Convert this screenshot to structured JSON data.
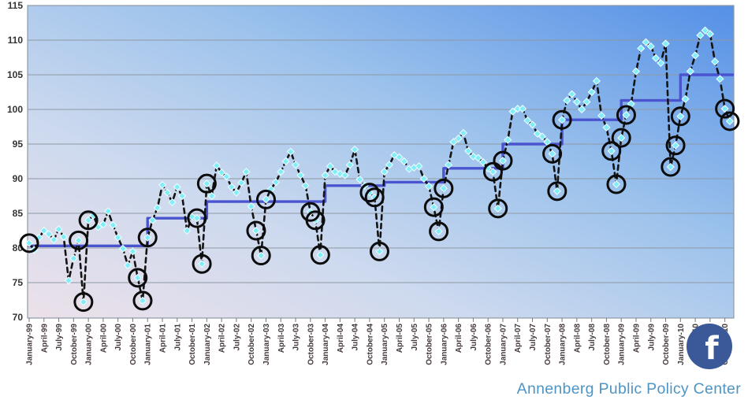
{
  "chart_data": {
    "type": "line",
    "title": "",
    "xlabel": "",
    "ylabel": "",
    "ylim": [
      70,
      115
    ],
    "yticks": [
      70,
      75,
      80,
      85,
      90,
      95,
      100,
      105,
      110,
      115
    ],
    "grid": true,
    "legend": "none",
    "start_month": "January-1999",
    "end_month": "November-2010",
    "x_quarter_labels": [
      "January-99",
      "April-99",
      "July-99",
      "October-99",
      "January-00",
      "April-00",
      "July-00",
      "October-00",
      "January-01",
      "April-01",
      "July-01",
      "October-01",
      "January-02",
      "April-02",
      "July-02",
      "October-02",
      "January-03",
      "April-03",
      "July-03",
      "October-03",
      "January-04",
      "April-04",
      "July-04",
      "October-04",
      "January-05",
      "April-05",
      "July-05",
      "October-05",
      "January-06",
      "April-06",
      "July-06",
      "October-06",
      "January-07",
      "April-07",
      "July-07",
      "October-07",
      "January-08",
      "April-08",
      "July-08",
      "October-08",
      "January-09",
      "April-09",
      "July-09",
      "October-09",
      "January-10",
      "April-10",
      "July-10",
      "October-10"
    ],
    "series": [
      {
        "name": "monthly-values-dashed",
        "marker": "diamond",
        "values": [
          80.7,
          79.7,
          81.5,
          82.5,
          82.0,
          81.2,
          82.7,
          81.6,
          75.3,
          78.5,
          81.1,
          72.2,
          84.0,
          84.7,
          83.0,
          83.4,
          85.3,
          83.3,
          81.5,
          79.9,
          77.5,
          79.5,
          75.7,
          72.4,
          81.5,
          84.0,
          85.8,
          89.1,
          88.0,
          86.6,
          88.8,
          87.5,
          82.5,
          84.5,
          84.3,
          77.7,
          89.3,
          87.5,
          91.9,
          90.9,
          90.3,
          88.8,
          88.0,
          89.4,
          91.0,
          86.0,
          82.5,
          78.9,
          87.0,
          88.5,
          89.5,
          91.0,
          92.5,
          93.9,
          92.0,
          90.5,
          89.0,
          85.2,
          84.0,
          79.0,
          90.5,
          91.8,
          91.0,
          90.7,
          90.5,
          92.0,
          94.2,
          89.9,
          89.0,
          88.0,
          87.3,
          79.5,
          91.0,
          92.0,
          93.4,
          93.1,
          92.5,
          91.4,
          91.6,
          91.8,
          90.0,
          88.9,
          85.9,
          82.4,
          88.6,
          92.0,
          95.3,
          95.8,
          96.6,
          94.0,
          93.2,
          93.0,
          92.4,
          91.5,
          91.0,
          85.7,
          92.6,
          95.6,
          99.7,
          100.1,
          100.1,
          98.4,
          97.8,
          96.5,
          96.1,
          95.3,
          93.6,
          88.2,
          98.5,
          101.3,
          102.2,
          101.1,
          100.0,
          101.1,
          102.5,
          104.1,
          99.1,
          97.4,
          94.0,
          89.2,
          95.9,
          99.2,
          100.8,
          105.5,
          108.8,
          109.7,
          109.1,
          107.4,
          106.7,
          109.5,
          91.7,
          94.8,
          99.0,
          101.5,
          105.5,
          107.8,
          110.7,
          111.4,
          110.9,
          106.9,
          104.4,
          100.1,
          98.3
        ]
      }
    ],
    "circled_point_indices": [
      0,
      10,
      11,
      12,
      22,
      23,
      24,
      34,
      35,
      36,
      46,
      47,
      48,
      57,
      58,
      59,
      69,
      70,
      71,
      82,
      83,
      84,
      94,
      95,
      96,
      106,
      107,
      108,
      118,
      119,
      120,
      121,
      130,
      131,
      132,
      141,
      142
    ],
    "step_line": {
      "name": "annual-level-step-line",
      "years": [
        1999,
        2000,
        2001,
        2002,
        2003,
        2004,
        2005,
        2006,
        2007,
        2008,
        2009,
        2010
      ],
      "levels": [
        80.3,
        80.3,
        84.3,
        86.7,
        86.7,
        89.0,
        89.5,
        91.5,
        95.0,
        98.5,
        101.3,
        105.0
      ]
    }
  },
  "footer": {
    "credit": "Annenberg Public Policy Center"
  },
  "social": {
    "facebook_letter": "f"
  },
  "colors": {
    "plot_gradient_top_right": "#5590e6",
    "plot_gradient_mid_blue": "#9cc2ec",
    "plot_gradient_mid_pale": "#ccd9ee",
    "plot_gradient_bottom_left": "#ece1ea",
    "gridline": "#8e99a4",
    "step_line": "#4a54cf",
    "dash_line": "#141414",
    "diamond_fill": "#7feef8",
    "diamond_edge": "#eafcff",
    "highlight_ring": "#0c0c0c",
    "tick_mark": "#777777",
    "credit_text": "#4e95c5",
    "facebook_blue": "#3b5998",
    "facebook_letter_color": "#ffffff"
  }
}
